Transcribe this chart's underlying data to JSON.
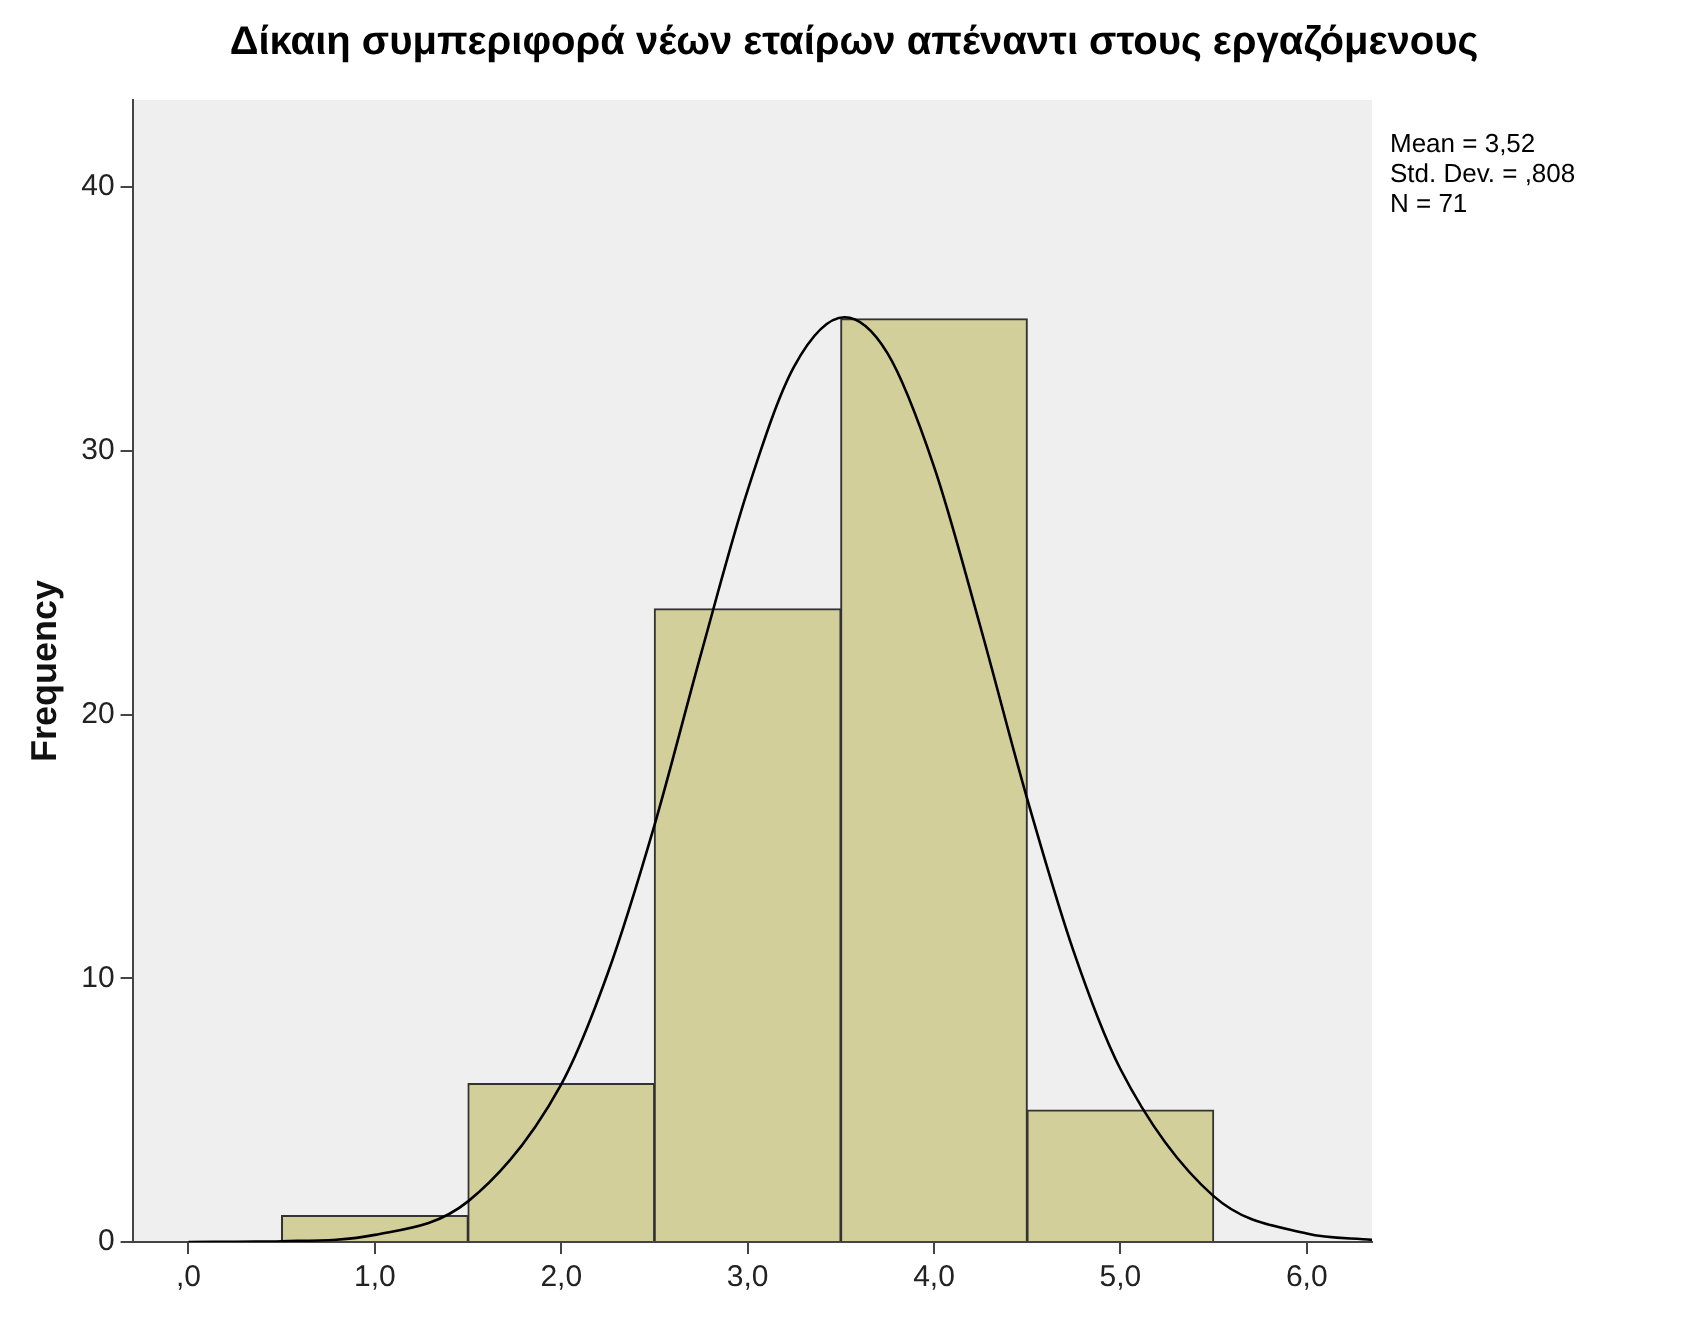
{
  "chart_data": {
    "type": "histogram",
    "title": "Δίκαιη συμπεριφορά νέων εταίρων απέναντι στους εργαζόμενους",
    "ylabel": "Frequency",
    "bins": [
      0.5,
      1.5,
      2.5,
      3.5,
      4.5,
      5.5
    ],
    "values": [
      1,
      6,
      24,
      35,
      5
    ],
    "color": "#d3cf9a",
    "series": [
      {
        "type": "line",
        "color": "#000000",
        "x": [
          0,
          0.5,
          1,
          1.5,
          2,
          2.25,
          2.5,
          2.75,
          3,
          3.25,
          3.52,
          3.75,
          4,
          4.25,
          4.5,
          4.75,
          5,
          5.5,
          6,
          6.35
        ],
        "values": [
          0,
          0.03,
          0.27,
          1.54,
          5.98,
          10.2,
          15.8,
          22.3,
          28.5,
          33.2,
          35.06,
          33.7,
          29.4,
          23.3,
          16.8,
          11.0,
          6.56,
          1.74,
          0.32,
          0.08
        ]
      }
    ],
    "xlim": [
      -0.3,
      6.35
    ],
    "xticks": [
      {
        "value": 0,
        "label": ",0"
      },
      {
        "value": 1,
        "label": "1,0"
      },
      {
        "value": 2,
        "label": "2,0"
      },
      {
        "value": 3,
        "label": "3,0"
      },
      {
        "value": 4,
        "label": "4,0"
      },
      {
        "value": 5,
        "label": "5,0"
      },
      {
        "value": 6,
        "label": "6,0"
      }
    ],
    "ylim": [
      0,
      43.3
    ],
    "yticks": [
      0,
      10,
      20,
      30,
      40
    ],
    "grid": false,
    "marker": "none",
    "annotations": [
      "Mean = 3,52",
      "Std. Dev. = ,808",
      "N = 71"
    ]
  }
}
